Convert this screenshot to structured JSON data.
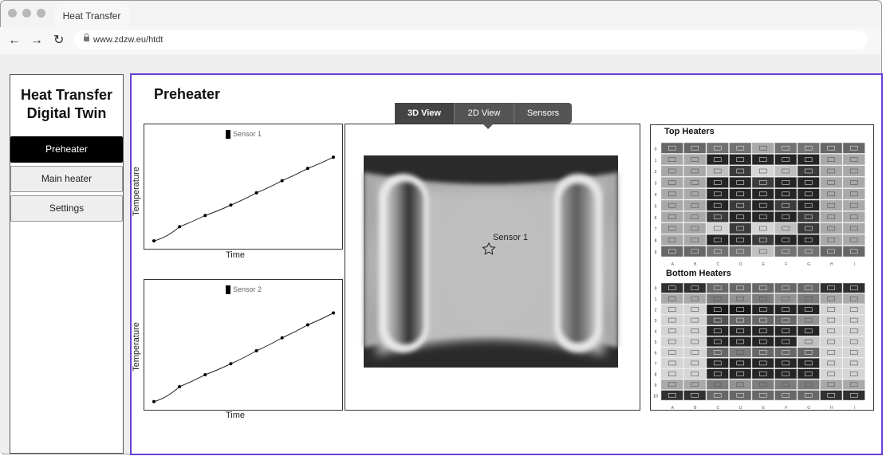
{
  "browser": {
    "tab_title": "Heat Transfer",
    "url": "www.zdzw.eu/htdt"
  },
  "sidebar": {
    "title_line1": "Heat Transfer",
    "title_line2": "Digital Twin",
    "items": [
      {
        "label": "Preheater"
      },
      {
        "label": "Main heater"
      },
      {
        "label": "Settings"
      }
    ]
  },
  "main": {
    "page_title": "Preheater",
    "view_tabs": [
      {
        "label": "3D View"
      },
      {
        "label": "2D View"
      },
      {
        "label": "Sensors"
      }
    ],
    "sensor_marker_label": "Sensor 1"
  },
  "chart_data": [
    {
      "type": "line",
      "series": [
        {
          "name": "Sensor 1",
          "values": [
            0.5,
            2.0,
            3.2,
            4.3,
            5.6,
            6.9,
            8.2,
            9.4
          ]
        }
      ],
      "x": [
        0,
        1,
        2,
        3,
        4,
        5,
        6,
        7
      ],
      "xlabel": "Time",
      "ylabel": "Temperature",
      "grid": false,
      "legend": "top"
    },
    {
      "type": "line",
      "series": [
        {
          "name": "Sensor 2",
          "values": [
            0.5,
            2.0,
            3.2,
            4.3,
            5.6,
            6.9,
            8.2,
            9.4
          ]
        }
      ],
      "x": [
        0,
        1,
        2,
        3,
        4,
        5,
        6,
        7
      ],
      "xlabel": "Time",
      "ylabel": "Temperature",
      "grid": false,
      "legend": "top"
    }
  ],
  "heaters": {
    "top_title": "Top Heaters",
    "bottom_title": "Bottom Heaters",
    "columns": [
      "A",
      "B",
      "C",
      "D",
      "E",
      "F",
      "G",
      "H",
      "I"
    ],
    "top_rows": [
      "0",
      "1",
      "2",
      "3",
      "4",
      "5",
      "6",
      "7",
      "8",
      "9"
    ],
    "bottom_rows": [
      "0",
      "1",
      "2",
      "3",
      "4",
      "5",
      "6",
      "7",
      "8",
      "9",
      "10"
    ],
    "top_levels": [
      [
        0.6,
        0.6,
        0.55,
        0.55,
        0.3,
        0.55,
        0.55,
        0.6,
        0.6
      ],
      [
        0.3,
        0.3,
        0.9,
        0.9,
        0.9,
        0.9,
        0.9,
        0.3,
        0.3
      ],
      [
        0.3,
        0.3,
        0.2,
        0.8,
        0.1,
        0.2,
        0.8,
        0.3,
        0.3
      ],
      [
        0.3,
        0.3,
        0.9,
        0.9,
        0.8,
        0.9,
        0.9,
        0.3,
        0.3
      ],
      [
        0.3,
        0.3,
        0.9,
        0.9,
        0.9,
        0.9,
        0.9,
        0.3,
        0.3
      ],
      [
        0.3,
        0.3,
        0.9,
        0.8,
        0.9,
        0.8,
        0.9,
        0.3,
        0.3
      ],
      [
        0.3,
        0.3,
        0.8,
        0.9,
        0.9,
        0.9,
        0.8,
        0.3,
        0.3
      ],
      [
        0.3,
        0.3,
        0.1,
        0.8,
        0.1,
        0.2,
        0.8,
        0.3,
        0.3
      ],
      [
        0.3,
        0.3,
        0.9,
        0.9,
        0.8,
        0.9,
        0.9,
        0.3,
        0.3
      ],
      [
        0.6,
        0.6,
        0.55,
        0.55,
        0.2,
        0.55,
        0.55,
        0.6,
        0.6
      ]
    ],
    "bottom_levels": [
      [
        0.85,
        0.85,
        0.6,
        0.6,
        0.6,
        0.6,
        0.6,
        0.85,
        0.85
      ],
      [
        0.3,
        0.3,
        0.5,
        0.4,
        0.5,
        0.4,
        0.5,
        0.3,
        0.3
      ],
      [
        0.1,
        0.1,
        0.95,
        0.95,
        0.9,
        0.9,
        0.9,
        0.1,
        0.1
      ],
      [
        0.1,
        0.1,
        0.7,
        0.6,
        0.6,
        0.6,
        0.4,
        0.1,
        0.1
      ],
      [
        0.1,
        0.1,
        0.9,
        0.9,
        0.9,
        0.9,
        0.9,
        0.1,
        0.1
      ],
      [
        0.1,
        0.1,
        0.9,
        0.9,
        0.9,
        0.9,
        0.2,
        0.1,
        0.1
      ],
      [
        0.1,
        0.1,
        0.6,
        0.5,
        0.6,
        0.6,
        0.6,
        0.1,
        0.1
      ],
      [
        0.1,
        0.1,
        0.9,
        0.9,
        0.9,
        0.9,
        0.9,
        0.1,
        0.1
      ],
      [
        0.1,
        0.1,
        0.9,
        0.9,
        0.9,
        0.9,
        0.9,
        0.1,
        0.1
      ],
      [
        0.3,
        0.3,
        0.5,
        0.4,
        0.5,
        0.5,
        0.5,
        0.3,
        0.3
      ],
      [
        0.85,
        0.85,
        0.6,
        0.6,
        0.6,
        0.6,
        0.6,
        0.85,
        0.85
      ]
    ]
  },
  "colors": {
    "accent_border": "#6a3fd6",
    "active_nav_bg": "#000000",
    "segmented_bg": "#555555"
  }
}
